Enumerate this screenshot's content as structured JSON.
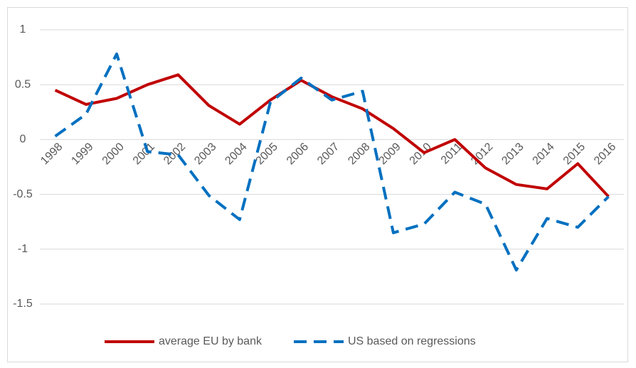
{
  "chart_data": {
    "type": "line",
    "categories": [
      "1998",
      "1999",
      "2000",
      "2001",
      "2002",
      "2003",
      "2004",
      "2005",
      "2006",
      "2007",
      "2008",
      "2009",
      "2010",
      "2011",
      "2012",
      "2013",
      "2014",
      "2015",
      "2016"
    ],
    "series": [
      {
        "name": "average EU by bank",
        "color": "#c00000",
        "dashed": false,
        "values": [
          0.45,
          0.32,
          0.375,
          0.5,
          0.59,
          0.31,
          0.14,
          0.36,
          0.54,
          0.39,
          0.28,
          0.1,
          -0.12,
          0,
          -0.26,
          -0.41,
          -0.45,
          -0.22,
          -0.52
        ]
      },
      {
        "name": "US based on regressions",
        "color": "#0070c0",
        "dashed": true,
        "values": [
          0.03,
          0.23,
          0.78,
          -0.11,
          -0.14,
          -0.51,
          -0.73,
          0.34,
          0.56,
          0.36,
          0.44,
          -0.85,
          -0.77,
          -0.48,
          -0.59,
          -1.19,
          -0.72,
          -0.8,
          -0.52
        ]
      }
    ],
    "ylim": [
      -1.5,
      1
    ],
    "yticks": [
      -1.5,
      -1,
      -0.5,
      0,
      0.5,
      1
    ],
    "grid": true,
    "legend": "bottom"
  }
}
